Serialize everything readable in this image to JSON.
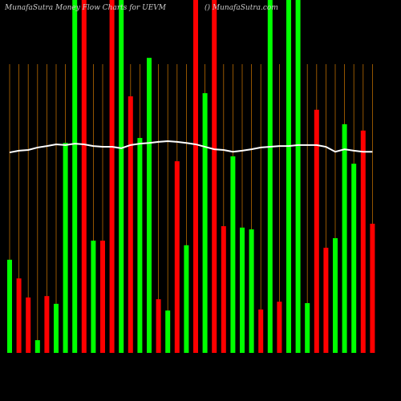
{
  "chart_data": {
    "type": "bar",
    "title": "MunafaSutra  Money Flow  Charts for UEVM",
    "subtitle": "() MunafaSutra.com",
    "ylim": [
      0,
      100
    ],
    "values": [
      26.4,
      21.1,
      15.7,
      3.6,
      16.1,
      13.9,
      59.5,
      100,
      100,
      31.8,
      31.8,
      100,
      100,
      72.7,
      60.9,
      83.6,
      15.2,
      12,
      54.3,
      30.5,
      100,
      73.6,
      100,
      35.9,
      55.7,
      35.5,
      35,
      12.3,
      100,
      14.5,
      100,
      100,
      14.1,
      68.9,
      29.8,
      32.5,
      64.8,
      53.6,
      63,
      36.6
    ],
    "colors": [
      "#00ff00",
      "#ff0000",
      "#ff0000",
      "#00ff00",
      "#ff0000",
      "#00ff00",
      "#00ff00",
      "#00ff00",
      "#ff0000",
      "#00ff00",
      "#ff0000",
      "#ff0000",
      "#00ff00",
      "#ff0000",
      "#00ff00",
      "#00ff00",
      "#ff0000",
      "#00ff00",
      "#ff0000",
      "#00ff00",
      "#ff0000",
      "#00ff00",
      "#ff0000",
      "#ff0000",
      "#00ff00",
      "#00ff00",
      "#00ff00",
      "#ff0000",
      "#00ff00",
      "#ff0000",
      "#00ff00",
      "#00ff00",
      "#00ff00",
      "#ff0000",
      "#ff0000",
      "#00ff00",
      "#00ff00",
      "#00ff00",
      "#ff0000",
      "#ff0000"
    ],
    "line": {
      "color": "#ffffff",
      "values": [
        56.8,
        57.3,
        57.5,
        58.2,
        58.6,
        59.1,
        58.9,
        59.3,
        59.1,
        58.6,
        58.4,
        58.4,
        58,
        58.9,
        59.3,
        59.5,
        59.8,
        60,
        59.8,
        59.5,
        59.1,
        58.4,
        57.7,
        57.5,
        57,
        57.3,
        57.7,
        58.2,
        58.4,
        58.6,
        58.6,
        58.9,
        58.9,
        58.9,
        58.4,
        57,
        57.7,
        57.3,
        57,
        57
      ]
    }
  }
}
